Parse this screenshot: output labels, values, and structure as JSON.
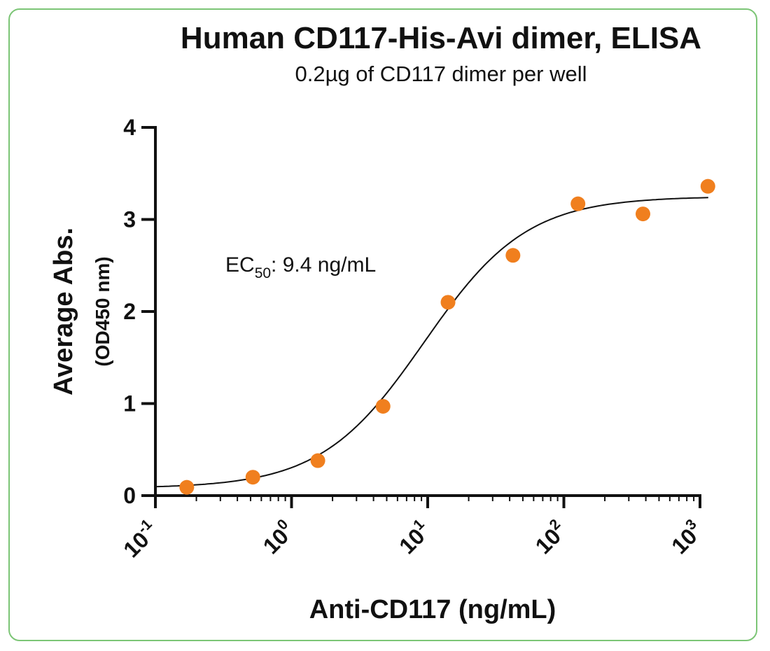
{
  "chart_data": {
    "type": "scatter",
    "title": "Human CD117-His-Avi dimer, ELISA",
    "subtitle": "0.2µg of CD117 dimer per well",
    "xlabel": "Anti-CD117  (ng/mL)",
    "ylabel": "Average Abs.",
    "ylabel_sub": "(OD450 nm)",
    "x_scale": "log10",
    "xlim": [
      0.1,
      1000
    ],
    "ylim": [
      0,
      4
    ],
    "x_ticks": [
      {
        "base": "10",
        "exp": "-1",
        "value": 0.1
      },
      {
        "base": "10",
        "exp": "0",
        "value": 1
      },
      {
        "base": "10",
        "exp": "1",
        "value": 10
      },
      {
        "base": "10",
        "exp": "2",
        "value": 100
      },
      {
        "base": "10",
        "exp": "3",
        "value": 1000
      }
    ],
    "y_ticks": [
      "0",
      "1",
      "2",
      "3",
      "4"
    ],
    "grid": false,
    "series": [
      {
        "color": "#f07f1e",
        "x": [
          0.17,
          0.52,
          1.56,
          4.7,
          14.1,
          42.3,
          127,
          381,
          1143
        ],
        "y": [
          0.09,
          0.2,
          0.38,
          0.97,
          2.1,
          2.61,
          3.17,
          3.06,
          3.36
        ]
      }
    ],
    "fit_curve": {
      "model": "4PL",
      "bottom": 0.08,
      "top": 3.25,
      "ec50": 9.4,
      "hill": 1.15,
      "color": "#111111"
    },
    "annotation": {
      "prefix": "EC",
      "subscript": "50",
      "suffix": ": 9.4 ng/mL"
    }
  },
  "colors": {
    "frame": "#7cc576",
    "points": "#f07f1e"
  }
}
